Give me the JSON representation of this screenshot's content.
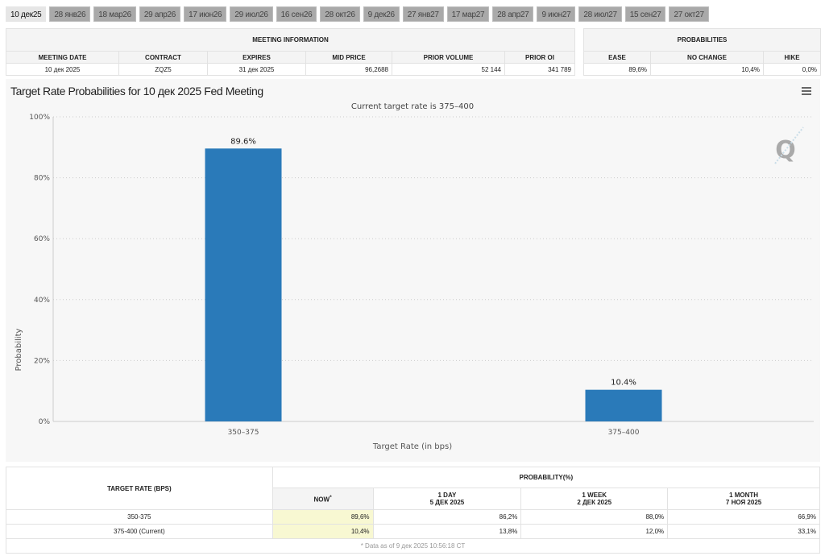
{
  "tabs": [
    "10 дек25",
    "28 янв26",
    "18 мар26",
    "29 апр26",
    "17 июн26",
    "29 июл26",
    "16 сен26",
    "28 окт26",
    "9 дек26",
    "27 янв27",
    "17 мар27",
    "28 апр27",
    "9 июн27",
    "28 июл27",
    "15 сен27",
    "27 окт27"
  ],
  "meeting_info": {
    "title": "MEETING INFORMATION",
    "headers": [
      "MEETING DATE",
      "CONTRACT",
      "EXPIRES",
      "MID PRICE",
      "PRIOR VOLUME",
      "PRIOR OI"
    ],
    "values": [
      "10 дек 2025",
      "ZQZ5",
      "31 дек 2025",
      "96,2688",
      "52 144",
      "341 789"
    ]
  },
  "probabilities": {
    "title": "PROBABILITIES",
    "headers": [
      "EASE",
      "NO CHANGE",
      "HIKE"
    ],
    "values": [
      "89,6%",
      "10,4%",
      "0,0%"
    ]
  },
  "chart_data": {
    "type": "bar",
    "title": "Target Rate Probabilities for 10 дек 2025 Fed Meeting",
    "subtitle": "Current target rate is 375–400",
    "xlabel": "Target Rate (in bps)",
    "ylabel": "Probability",
    "categories": [
      "350–375",
      "375–400"
    ],
    "values": [
      89.6,
      10.4
    ],
    "data_labels": [
      "89.6%",
      "10.4%"
    ],
    "ylim": [
      0,
      100
    ],
    "yticks": [
      "0%",
      "20%",
      "40%",
      "60%",
      "80%",
      "100%"
    ],
    "grid": true,
    "bar_color": "#2a7ab9"
  },
  "bottom_table": {
    "col_header": "TARGET RATE (BPS)",
    "group_header": "PROBABILITY(%)",
    "columns": [
      {
        "l1": "NOW",
        "l2": ""
      },
      {
        "l1": "1 DAY",
        "l2": "5 ДЕК 2025"
      },
      {
        "l1": "1 WEEK",
        "l2": "2 ДЕК 2025"
      },
      {
        "l1": "1 MONTH",
        "l2": "7 НОЯ 2025"
      }
    ],
    "now_mark": "*",
    "rows": [
      {
        "rate": "350-375",
        "vals": [
          "89,6%",
          "86,2%",
          "88,0%",
          "66,9%"
        ]
      },
      {
        "rate": "375-400 (Current)",
        "vals": [
          "10,4%",
          "13,8%",
          "12,0%",
          "33,1%"
        ]
      }
    ],
    "footnote": "* Data as of 9 дек 2025 10:56:18 CT"
  }
}
